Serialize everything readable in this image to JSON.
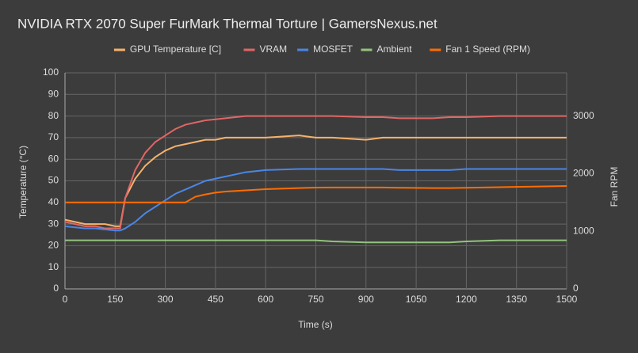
{
  "chart_data": {
    "type": "line",
    "title": "NVIDIA RTX 2070 Super FurMark Thermal Torture | GamersNexus.net",
    "x_label": "Time (s)",
    "y_label": "Temperature (°C)",
    "y2_label": "Fan RPM",
    "x": [
      0,
      30,
      60,
      90,
      120,
      150,
      165,
      180,
      210,
      240,
      270,
      300,
      330,
      360,
      390,
      420,
      450,
      480,
      510,
      540,
      600,
      700,
      750,
      800,
      900,
      950,
      1000,
      1100,
      1150,
      1200,
      1300,
      1400,
      1500
    ],
    "series": [
      {
        "name": "GPU Temperature [C]",
        "color": "#f6b26b",
        "values": [
          32,
          31,
          30,
          30,
          30,
          29,
          29,
          42,
          51,
          57,
          61,
          64,
          66,
          67,
          68,
          69,
          69,
          70,
          70,
          70,
          70,
          71,
          70,
          70,
          69,
          70,
          70,
          70,
          70,
          70,
          70,
          70,
          70
        ]
      },
      {
        "name": "VRAM",
        "color": "#e06666",
        "values": [
          31,
          30,
          29,
          29,
          28,
          28,
          28,
          42,
          55,
          63,
          68,
          71,
          74,
          76,
          77,
          78,
          78.5,
          79,
          79.5,
          80,
          80,
          80,
          80,
          80,
          79.5,
          79.5,
          79,
          79,
          79.5,
          79.5,
          80,
          80,
          80
        ]
      },
      {
        "name": "MOSFET",
        "color": "#4a86e8",
        "values": [
          29,
          28.5,
          28,
          28,
          27.5,
          27,
          27,
          28,
          31,
          35,
          38,
          41,
          44,
          46,
          48,
          50,
          51,
          52,
          53,
          54,
          55,
          55.5,
          55.5,
          55.5,
          55.5,
          55.5,
          55,
          55,
          55,
          55.5,
          55.5,
          55.5,
          55.5
        ]
      },
      {
        "name": "Ambient",
        "color": "#93c47d",
        "values": [
          22.5,
          22.5,
          22.5,
          22.5,
          22.5,
          22.5,
          22.5,
          22.5,
          22.5,
          22.5,
          22.5,
          22.5,
          22.5,
          22.5,
          22.5,
          22.5,
          22.5,
          22.5,
          22.5,
          22.5,
          22.5,
          22.5,
          22.5,
          22,
          21.5,
          21.5,
          21.5,
          21.5,
          21.5,
          22,
          22.5,
          22.5,
          22.5
        ]
      },
      {
        "name": "Fan 1 Speed (RPM)",
        "color": "#ff6d01",
        "axis": "y2",
        "values": [
          1500,
          1500,
          1500,
          1500,
          1500,
          1500,
          1500,
          1500,
          1500,
          1500,
          1500,
          1500,
          1500,
          1500,
          1600,
          1640,
          1670,
          1690,
          1700,
          1710,
          1730,
          1750,
          1758,
          1760,
          1760,
          1760,
          1755,
          1750,
          1750,
          1755,
          1765,
          1775,
          1786
        ]
      }
    ],
    "xlim": [
      0,
      1500
    ],
    "xticks": [
      0,
      150,
      300,
      450,
      600,
      750,
      900,
      1050,
      1200,
      1350,
      1500
    ],
    "ylim": [
      0,
      100
    ],
    "yticks": [
      0,
      10,
      20,
      30,
      40,
      50,
      60,
      70,
      80,
      90,
      100
    ],
    "y2lim": [
      0,
      3750
    ],
    "y2ticks": [
      0,
      1000,
      2000,
      3000
    ],
    "grid": true,
    "legend": "top"
  }
}
